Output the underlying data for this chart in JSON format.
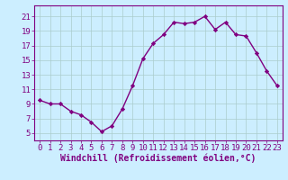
{
  "hours": [
    0,
    1,
    2,
    3,
    4,
    5,
    6,
    7,
    8,
    9,
    10,
    11,
    12,
    13,
    14,
    15,
    16,
    17,
    18,
    19,
    20,
    21,
    22,
    23
  ],
  "values": [
    9.5,
    9.0,
    9.0,
    8.0,
    7.5,
    6.5,
    5.2,
    6.0,
    8.3,
    11.5,
    15.2,
    17.3,
    18.5,
    20.2,
    20.0,
    20.2,
    21.0,
    19.2,
    20.2,
    18.5,
    18.3,
    16.0,
    13.5,
    11.5
  ],
  "line_color": "#800080",
  "marker": "D",
  "marker_size": 2.2,
  "bg_color": "#cceeff",
  "grid_color": "#aacccc",
  "xlabel": "Windchill (Refroidissement éolien,°C)",
  "ylim": [
    4,
    22.5
  ],
  "xlim": [
    -0.5,
    23.5
  ],
  "yticks": [
    5,
    7,
    9,
    11,
    13,
    15,
    17,
    19,
    21
  ],
  "xticks": [
    0,
    1,
    2,
    3,
    4,
    5,
    6,
    7,
    8,
    9,
    10,
    11,
    12,
    13,
    14,
    15,
    16,
    17,
    18,
    19,
    20,
    21,
    22,
    23
  ],
  "axis_color": "#800080",
  "tick_color": "#800080",
  "xlabel_fontsize": 7,
  "tick_fontsize": 6.5,
  "linewidth": 1.0
}
